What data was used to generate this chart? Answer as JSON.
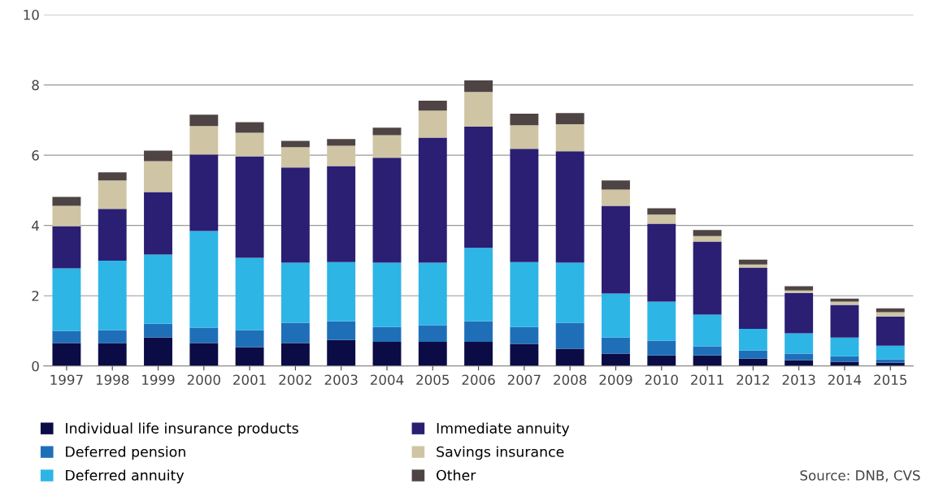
{
  "chart_data": {
    "type": "bar",
    "stacked": true,
    "categories": [
      "1997",
      "1998",
      "1999",
      "2000",
      "2001",
      "2002",
      "2003",
      "2004",
      "2005",
      "2006",
      "2007",
      "2008",
      "2009",
      "2010",
      "2011",
      "2012",
      "2013",
      "2014",
      "2015"
    ],
    "series": [
      {
        "name": "Individual life insurance products",
        "color": "#0b0b45",
        "values": [
          0.65,
          0.65,
          0.81,
          0.65,
          0.53,
          0.65,
          0.74,
          0.69,
          0.69,
          0.69,
          0.63,
          0.49,
          0.35,
          0.3,
          0.3,
          0.21,
          0.16,
          0.12,
          0.09
        ]
      },
      {
        "name": "Deferred pension",
        "color": "#1f6fb8",
        "values": [
          0.35,
          0.37,
          0.39,
          0.44,
          0.49,
          0.58,
          0.53,
          0.42,
          0.47,
          0.58,
          0.48,
          0.74,
          0.46,
          0.42,
          0.26,
          0.23,
          0.19,
          0.16,
          0.1
        ]
      },
      {
        "name": "Deferred annuity",
        "color": "#2db5e6",
        "values": [
          1.78,
          1.98,
          1.97,
          2.75,
          2.06,
          1.71,
          1.69,
          1.83,
          1.78,
          2.09,
          1.85,
          1.71,
          1.25,
          1.11,
          0.9,
          0.62,
          0.58,
          0.53,
          0.39
        ]
      },
      {
        "name": "Immediate annuity",
        "color": "#2a1f72",
        "values": [
          1.2,
          1.47,
          1.78,
          2.18,
          2.89,
          2.71,
          2.73,
          2.99,
          3.56,
          3.45,
          3.22,
          3.17,
          2.5,
          2.22,
          2.08,
          1.74,
          1.15,
          0.93,
          0.83
        ]
      },
      {
        "name": "Savings insurance",
        "color": "#cfc5a5",
        "values": [
          0.58,
          0.81,
          0.88,
          0.81,
          0.67,
          0.58,
          0.58,
          0.64,
          0.77,
          0.99,
          0.67,
          0.77,
          0.46,
          0.26,
          0.16,
          0.09,
          0.07,
          0.09,
          0.12
        ]
      },
      {
        "name": "Other",
        "color": "#4e4444",
        "values": [
          0.25,
          0.23,
          0.3,
          0.32,
          0.3,
          0.18,
          0.19,
          0.21,
          0.28,
          0.33,
          0.33,
          0.32,
          0.26,
          0.18,
          0.17,
          0.14,
          0.12,
          0.09,
          0.11
        ]
      }
    ],
    "ylim": [
      0,
      10
    ],
    "yticks": [
      0,
      2,
      4,
      6,
      8,
      10
    ],
    "grid": "y",
    "legend": "bottom",
    "annotations": [
      "Source: DNB, CVS"
    ]
  }
}
